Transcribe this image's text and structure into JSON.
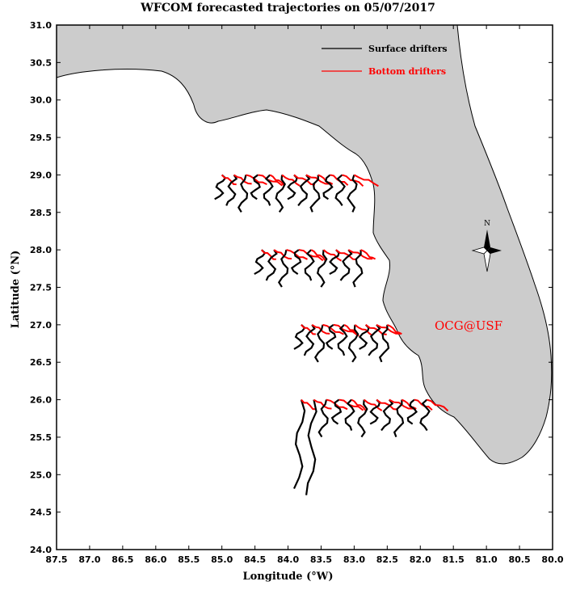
{
  "title": "WFCOM forecasted trajectories on 05/07/2017",
  "xlabel": "Longitude (°W)",
  "ylabel": "Latitude (°N)",
  "credit": "OCG@USF",
  "compass_label": "N",
  "colors": {
    "land": "#cccccc",
    "surface": "#000000",
    "bottom": "#ff0000",
    "credit": "#ff0000"
  },
  "legend": [
    {
      "label": "Surface drifters",
      "color": "#000000"
    },
    {
      "label": "Bottom drifters",
      "color": "#ff0000"
    }
  ],
  "axes": {
    "xlim": [
      87.5,
      80.0
    ],
    "ylim": [
      24.0,
      31.0
    ],
    "xticks": [
      "87.5",
      "87.0",
      "86.5",
      "86.0",
      "85.5",
      "85.0",
      "84.5",
      "84.0",
      "83.5",
      "83.0",
      "82.5",
      "82.0",
      "81.5",
      "81.0",
      "80.5",
      "80.0"
    ],
    "yticks": [
      "24.0",
      "24.5",
      "25.0",
      "25.5",
      "26.0",
      "26.5",
      "27.0",
      "27.5",
      "28.0",
      "28.5",
      "29.0",
      "29.5",
      "30.0",
      "30.5",
      "31.0"
    ]
  },
  "chart_data": {
    "type": "map",
    "release_rows": [
      {
        "lat": 29.0,
        "lon_start": 85.0,
        "lon_end": 83.0,
        "count": 12
      },
      {
        "lat": 28.0,
        "lon_start": 84.4,
        "lon_end": 82.9,
        "count": 9
      },
      {
        "lat": 27.0,
        "lon_start": 83.8,
        "lon_end": 82.5,
        "count": 9
      },
      {
        "lat": 26.0,
        "lon_start": 83.8,
        "lon_end": 81.9,
        "count": 11
      }
    ]
  }
}
